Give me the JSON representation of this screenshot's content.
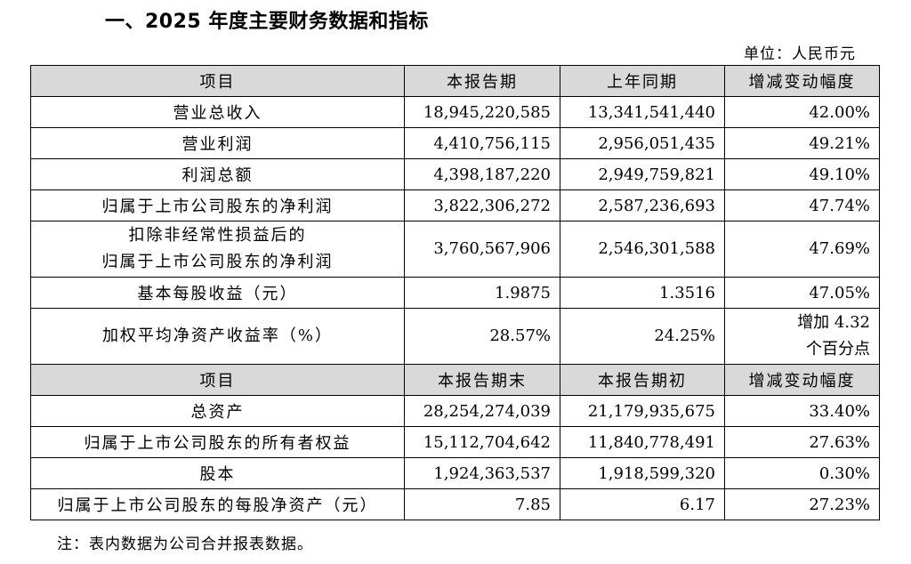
{
  "title": "一、2025 年度主要财务数据和指标",
  "unit": "单位：人民币元",
  "header1": [
    "项目",
    "本报告期",
    "上年同期",
    "增减变动幅度"
  ],
  "rows1": [
    {
      "label": "营业总收入",
      "current": "18,945,220,585",
      "prior": "13,341,541,440",
      "change": "42.00%"
    },
    {
      "label": "营业利润",
      "current": "4,410,756,115",
      "prior": "2,956,051,435",
      "change": "49.21%"
    },
    {
      "label": "利润总额",
      "current": "4,398,187,220",
      "prior": "2,949,759,821",
      "change": "49.10%"
    },
    {
      "label": "归属于上市公司股东的净利润",
      "current": "3,822,306,272",
      "prior": "2,587,236,693",
      "change": "47.74%"
    },
    {
      "label_line1": "扣除非经常性损益后的",
      "label_line2": "归属于上市公司股东的净利润",
      "current": "3,760,567,906",
      "prior": "2,546,301,588",
      "change": "47.69%"
    },
    {
      "label": "基本每股收益（元）",
      "current": "1.9875",
      "prior": "1.3516",
      "change": "47.05%"
    },
    {
      "label": "加权平均净资产收益率（%）",
      "current": "28.57%",
      "prior": "24.25%",
      "change_line1": "增加 4.32",
      "change_line2": "个百分点"
    }
  ],
  "header2": [
    "项目",
    "本报告期末",
    "本报告期初",
    "增减变动幅度"
  ],
  "rows2": [
    {
      "label": "总资产",
      "current": "28,254,274,039",
      "prior": "21,179,935,675",
      "change": "33.40%"
    },
    {
      "label": "归属于上市公司股东的所有者权益",
      "current": "15,112,704,642",
      "prior": "11,840,778,491",
      "change": "27.63%"
    },
    {
      "label": "股本",
      "current": "1,924,363,537",
      "prior": "1,918,599,320",
      "change": "0.30%"
    },
    {
      "label": "归属于上市公司股东的每股净资产（元）",
      "current": "7.85",
      "prior": "6.17",
      "change": "27.23%"
    }
  ],
  "note": "注：表内数据为公司合并报表数据。"
}
